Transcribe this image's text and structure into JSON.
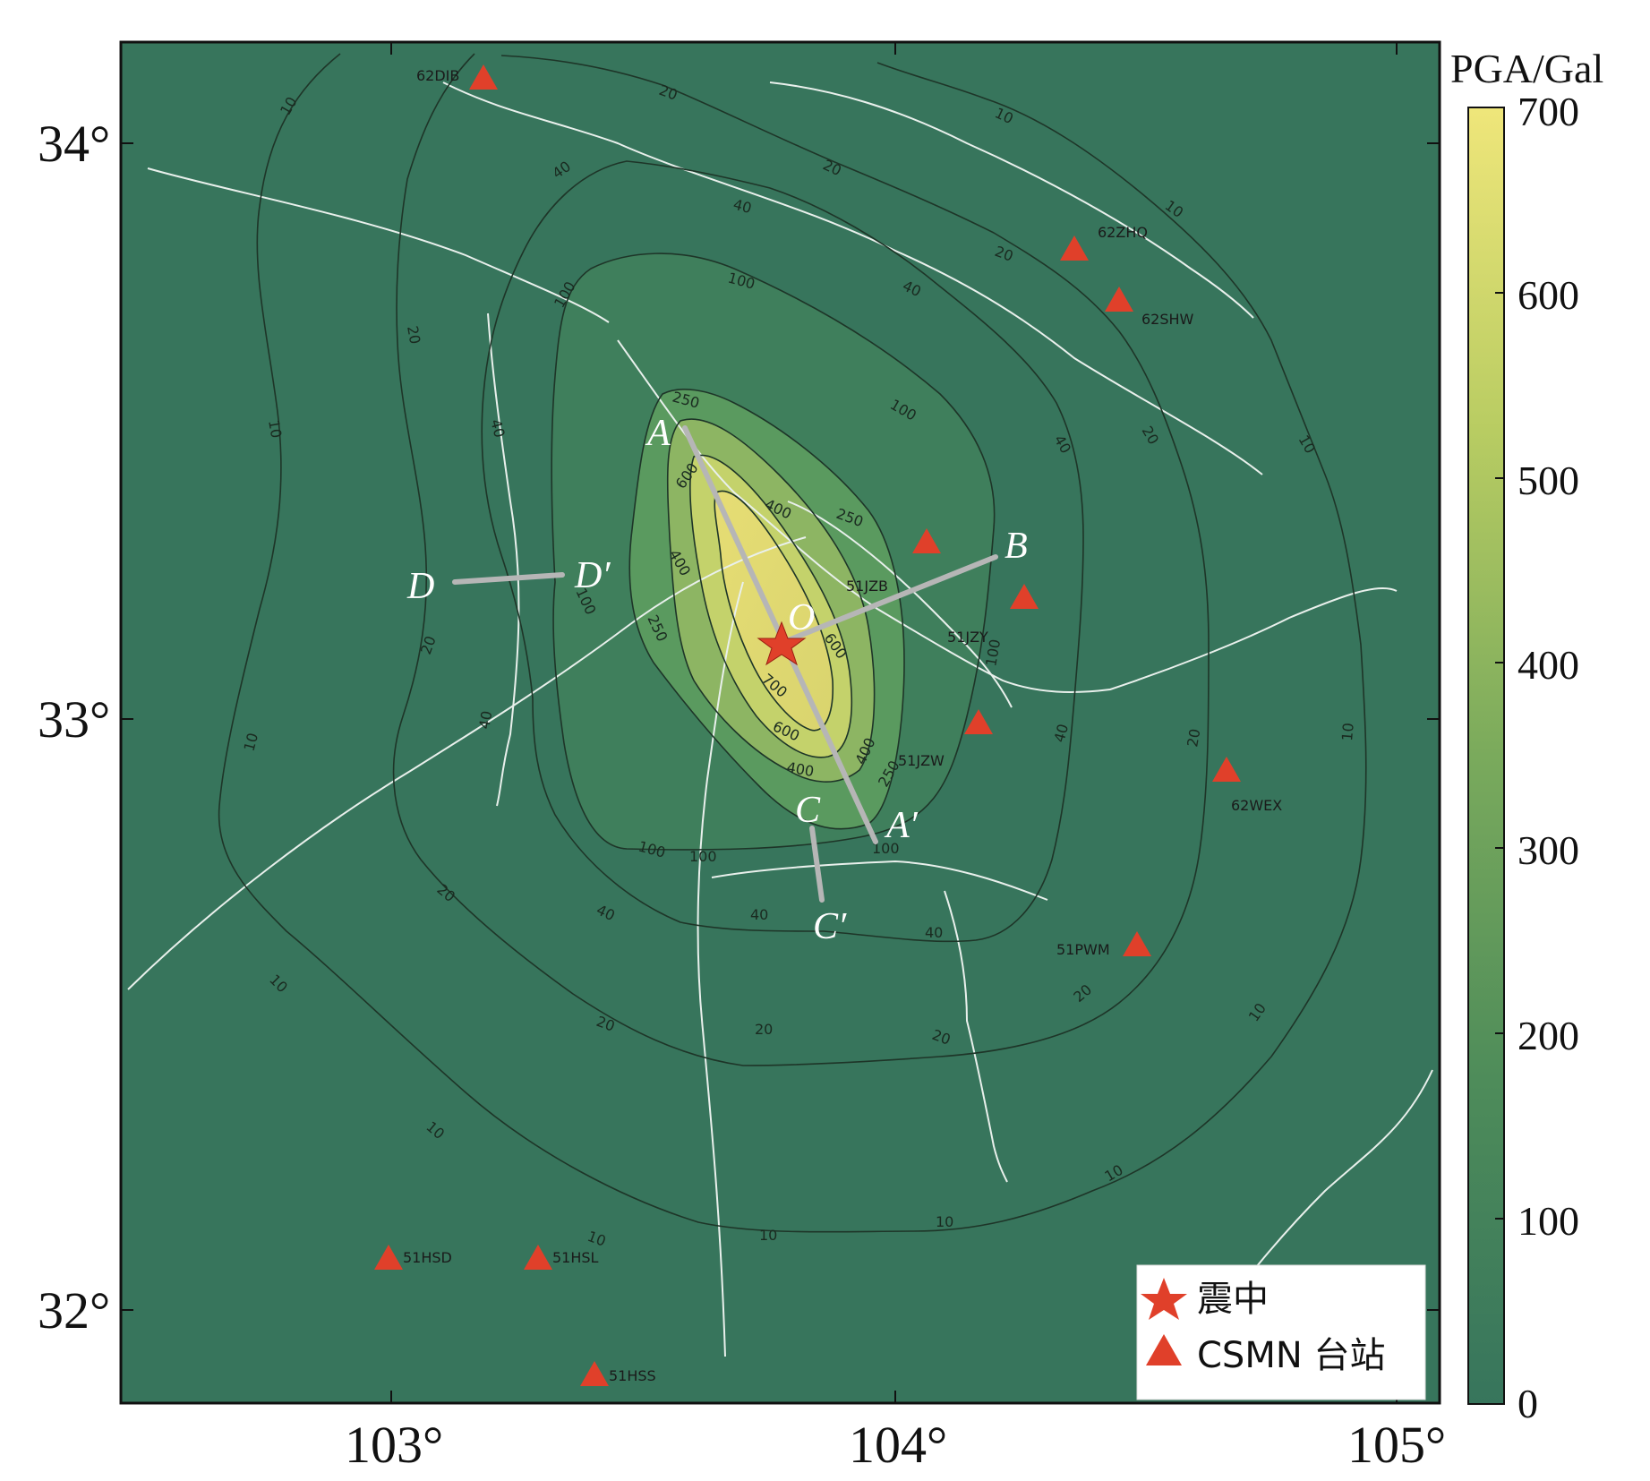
{
  "map": {
    "background_color": "#37755c",
    "contour_color": "#1e3528",
    "fault_color": "#e9f0ec",
    "profile_color": "#b6b6b6",
    "station_color": "#e0402a",
    "epicenter_color": "#e0402a",
    "x_ticks": [
      "103°",
      "104°",
      "105°"
    ],
    "y_ticks": [
      "34°",
      "33°",
      "32°"
    ]
  },
  "colorbar": {
    "title": "PGA/Gal",
    "ticks": [
      "700",
      "600",
      "500",
      "400",
      "300",
      "200",
      "100",
      "0"
    ],
    "min": 0,
    "max": 700,
    "colors": [
      "#37755c",
      "#4e8c5a",
      "#7aaa5c",
      "#b8cc62",
      "#efe67a"
    ]
  },
  "contours": {
    "labels_10": [
      "10",
      "10",
      "10",
      "10",
      "10",
      "10",
      "10",
      "10",
      "10",
      "10",
      "10",
      "10"
    ],
    "labels_20": [
      "20",
      "20",
      "20",
      "20",
      "20",
      "20",
      "20",
      "20",
      "20",
      "20"
    ],
    "labels_40": [
      "40",
      "40",
      "40",
      "40",
      "40",
      "40",
      "40",
      "40",
      "40",
      "40"
    ],
    "labels_100": [
      "100",
      "100",
      "100",
      "100",
      "100",
      "100",
      "100",
      "100"
    ],
    "labels_250": [
      "250",
      "250",
      "250",
      "250"
    ],
    "labels_400": [
      "400",
      "400",
      "400",
      "400"
    ],
    "labels_600": [
      "600",
      "600",
      "600"
    ],
    "labels_700": [
      "700"
    ]
  },
  "stations": [
    {
      "code": "62DIB"
    },
    {
      "code": "62ZHQ"
    },
    {
      "code": "62SHW"
    },
    {
      "code": "51JZB"
    },
    {
      "code": "51JZY"
    },
    {
      "code": "51JZW"
    },
    {
      "code": "62WEX"
    },
    {
      "code": "51PWM"
    },
    {
      "code": "51HSD"
    },
    {
      "code": "51HSL"
    },
    {
      "code": "51HSS"
    }
  ],
  "profiles": {
    "A": "A",
    "A_prime": "A′",
    "B": "B",
    "O": "O",
    "C": "C",
    "C_prime": "C′",
    "D": "D",
    "D_prime": "D′"
  },
  "legend": {
    "epicenter": "震中",
    "station": "CSMN 台站"
  }
}
